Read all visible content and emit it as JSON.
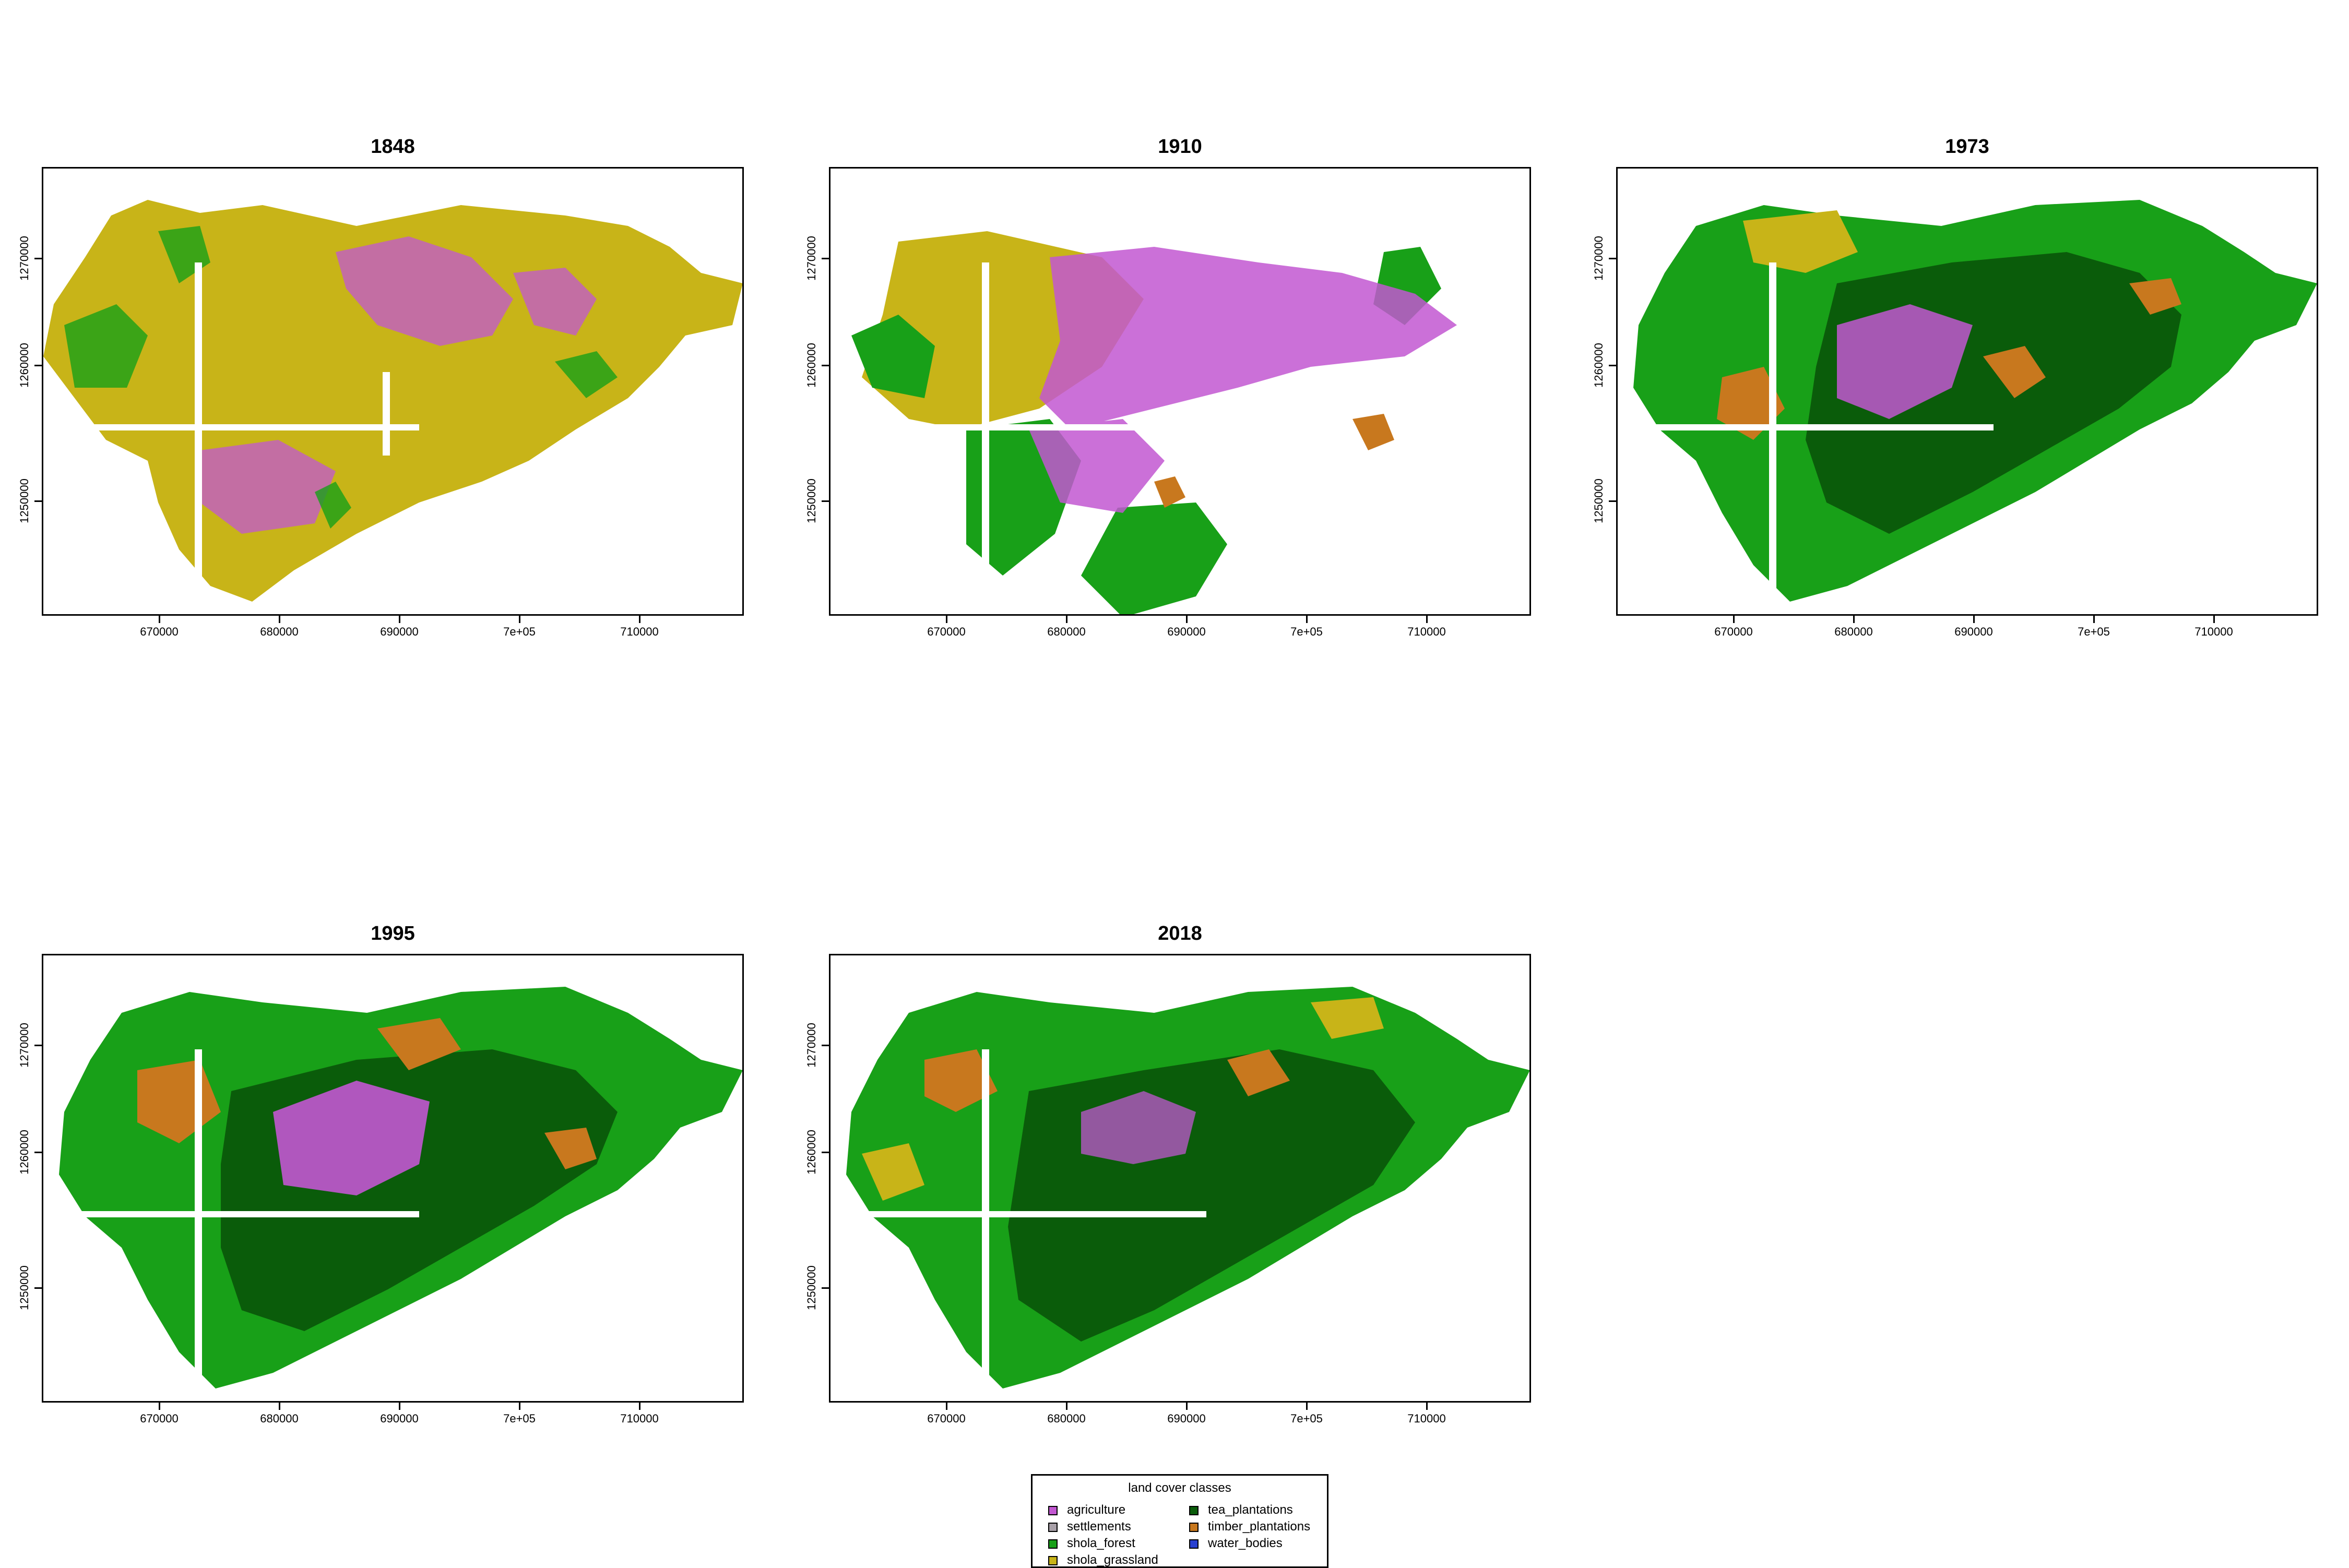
{
  "panels": [
    {
      "title": "1848"
    },
    {
      "title": "1910"
    },
    {
      "title": "1973"
    },
    {
      "title": "1995"
    },
    {
      "title": "2018"
    }
  ],
  "axes": {
    "x_ticks": [
      "670000",
      "680000",
      "690000",
      "7e+05",
      "710000"
    ],
    "y_ticks": [
      "1270000",
      "1260000",
      "1250000"
    ]
  },
  "legend": {
    "title": "land cover classes",
    "items": [
      {
        "label": "agriculture",
        "color": "#c257d1"
      },
      {
        "label": "settlements",
        "color": "#a8a0a8"
      },
      {
        "label": "shola_forest",
        "color": "#18a018"
      },
      {
        "label": "shola_grassland",
        "color": "#c8b418"
      },
      {
        "label": "tea_plantations",
        "color": "#0a5c0a"
      },
      {
        "label": "timber_plantations",
        "color": "#c8781e"
      },
      {
        "label": "water_bodies",
        "color": "#2840d0"
      }
    ]
  }
}
